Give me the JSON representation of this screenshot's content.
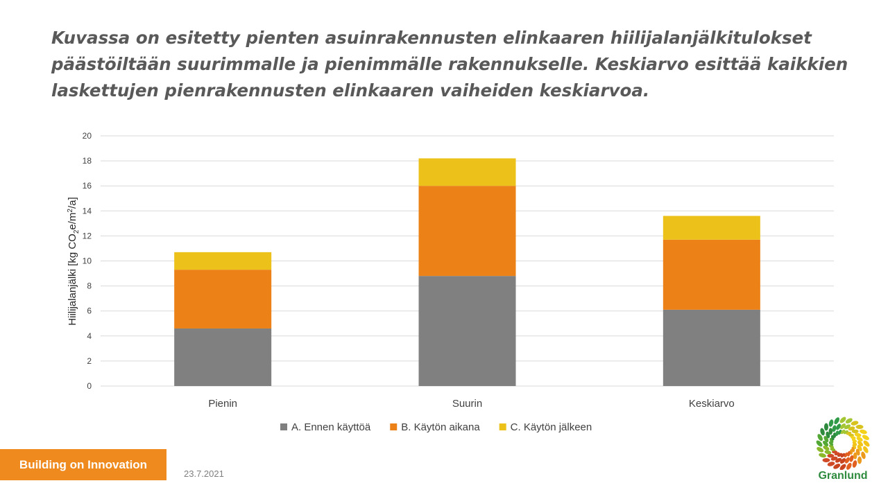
{
  "slide": {
    "title": "Kuvassa on esitetty pienten asuinrakennusten elinkaaren hiilijalanjälkitulokset päästöiltään suurimmalle ja pienimmälle rakennukselle. Keskiarvo esittää kaikkien laskettujen pienrakennusten elinkaaren vaiheiden keskiarvoa."
  },
  "chart_data": {
    "type": "bar",
    "stacked": true,
    "categories": [
      "Pienin",
      "Suurin",
      "Keskiarvo"
    ],
    "series": [
      {
        "name": "A. Ennen käyttöä",
        "values": [
          4.6,
          8.8,
          6.1
        ],
        "color": "#808080"
      },
      {
        "name": "B. Käytön aikana",
        "values": [
          4.7,
          7.2,
          5.6
        ],
        "color": "#ec8217"
      },
      {
        "name": "C. Käytön jälkeen",
        "values": [
          1.4,
          2.2,
          1.9
        ],
        "color": "#ebc11a"
      }
    ],
    "ylabel_parts": [
      "Hiilijalanjälki [kg CO",
      "2",
      "e/m",
      "2",
      "/a]"
    ],
    "ylim": [
      0,
      20
    ],
    "yticks": [
      "0",
      "2",
      "4",
      "6",
      "8",
      "10",
      "12",
      "14",
      "16",
      "18",
      "20"
    ],
    "grid": true,
    "legend_position": "bottom"
  },
  "footer": {
    "badge": "Building on Innovation",
    "date": "23.7.2021",
    "brand": "Granlund",
    "brand_color": "#2e8b3e",
    "badge_color": "#ee8a1e"
  }
}
